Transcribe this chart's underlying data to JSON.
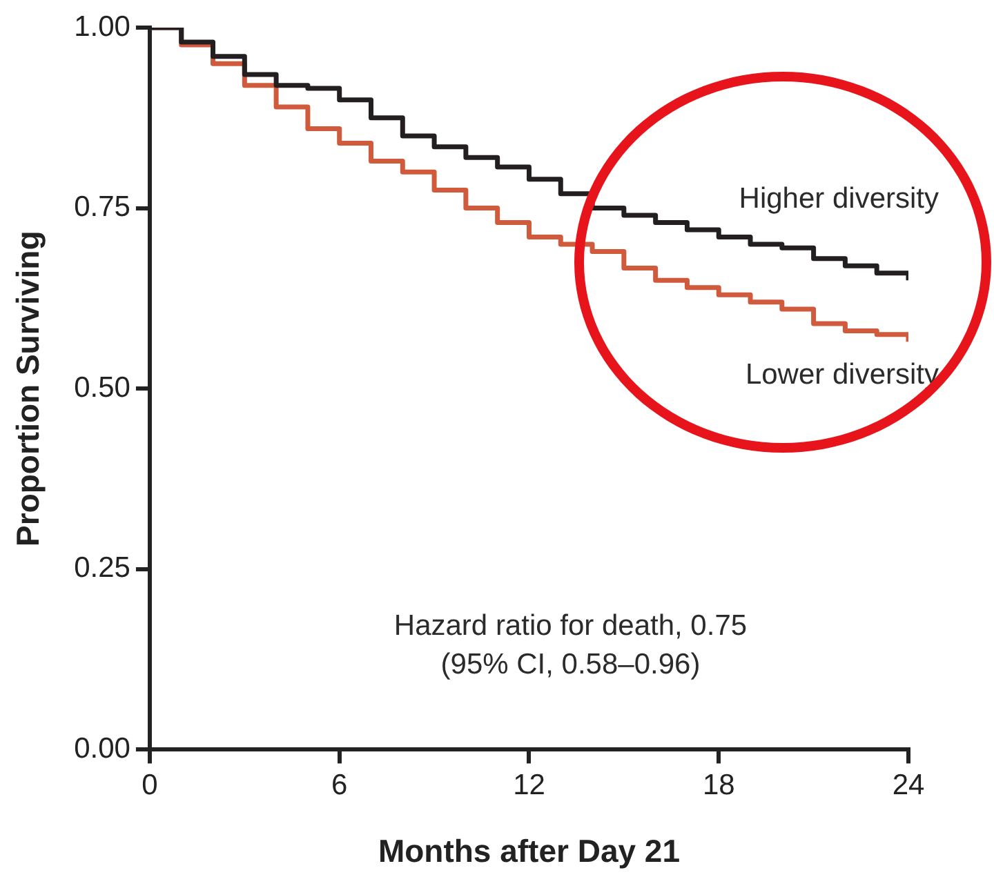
{
  "chart_data": {
    "type": "step",
    "xlabel": "Months after Day 21",
    "ylabel": "Proportion Surviving",
    "xlim": [
      0,
      24
    ],
    "xticks": [
      0,
      6,
      12,
      18,
      24
    ],
    "ylim": [
      0,
      1
    ],
    "yticks": [
      {
        "value": 0,
        "label": "0.00"
      },
      {
        "value": 0.25,
        "label": "0.25"
      },
      {
        "value": 0.5,
        "label": "0.50"
      },
      {
        "value": 0.75,
        "label": "0.75"
      },
      {
        "value": 1,
        "label": "1.00"
      }
    ],
    "x": [
      0,
      1,
      2,
      3,
      4,
      5,
      6,
      7,
      8,
      9,
      10,
      11,
      12,
      13,
      14,
      15,
      16,
      17,
      18,
      19,
      20,
      21,
      22,
      23,
      24
    ],
    "series": [
      {
        "name": "Higher diversity",
        "color": "#231f20",
        "values": [
          1.0,
          0.98,
          0.96,
          0.935,
          0.92,
          0.916,
          0.9,
          0.875,
          0.85,
          0.835,
          0.82,
          0.807,
          0.79,
          0.77,
          0.75,
          0.74,
          0.73,
          0.72,
          0.71,
          0.7,
          0.695,
          0.68,
          0.67,
          0.66,
          0.65
        ]
      },
      {
        "name": "Lower diversity",
        "color": "#d05a3c",
        "values": [
          1.0,
          0.976,
          0.95,
          0.92,
          0.89,
          0.86,
          0.84,
          0.815,
          0.8,
          0.775,
          0.75,
          0.73,
          0.71,
          0.7,
          0.69,
          0.667,
          0.65,
          0.64,
          0.63,
          0.62,
          0.61,
          0.59,
          0.58,
          0.575,
          0.565
        ]
      }
    ],
    "annotations": [
      "Hazard ratio for death, 0.75",
      "(95% CI, 0.58–0.96)"
    ],
    "grid": false,
    "legend": false,
    "marker": "none",
    "line_style": "solid"
  }
}
